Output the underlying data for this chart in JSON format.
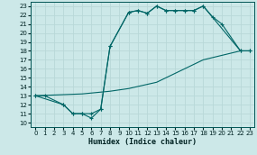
{
  "bg_color": "#cce8e8",
  "grid_color": "#b8d8d8",
  "line_color": "#006666",
  "xlabel": "Humidex (Indice chaleur)",
  "xlim": [
    -0.5,
    23.5
  ],
  "ylim": [
    9.5,
    23.5
  ],
  "xticks": [
    0,
    1,
    2,
    3,
    4,
    5,
    6,
    7,
    8,
    9,
    10,
    11,
    12,
    13,
    14,
    15,
    16,
    17,
    18,
    19,
    20,
    21,
    22,
    23
  ],
  "yticks": [
    10,
    11,
    12,
    13,
    14,
    15,
    16,
    17,
    18,
    19,
    20,
    21,
    22,
    23
  ],
  "curve1_x": [
    0,
    1,
    3,
    4,
    5,
    6,
    7,
    8,
    10,
    11,
    12,
    13,
    14,
    15,
    16,
    17,
    18,
    22,
    23
  ],
  "curve1_y": [
    13,
    13,
    12,
    11,
    11,
    10.5,
    11.5,
    18.5,
    22.3,
    22.5,
    22.2,
    23.0,
    22.5,
    22.5,
    22.5,
    22.5,
    23.0,
    18.0,
    18.0
  ],
  "curve2_x": [
    0,
    3,
    4,
    5,
    6,
    7,
    8,
    10,
    11,
    12,
    13,
    14,
    15,
    16,
    17,
    18,
    19,
    20,
    22,
    23
  ],
  "curve2_y": [
    13,
    12,
    11,
    11,
    11,
    11.5,
    18.5,
    22.3,
    22.5,
    22.2,
    23.0,
    22.5,
    22.5,
    22.5,
    22.5,
    23.0,
    21.8,
    21.0,
    18.0,
    18.0
  ],
  "curve3_x": [
    0,
    5,
    8,
    10,
    13,
    15,
    18,
    20,
    22,
    23
  ],
  "curve3_y": [
    13,
    13.2,
    13.5,
    13.8,
    14.5,
    15.5,
    17.0,
    17.5,
    18.0,
    18.0
  ],
  "tick_fontsize": 5,
  "xlabel_fontsize": 6
}
